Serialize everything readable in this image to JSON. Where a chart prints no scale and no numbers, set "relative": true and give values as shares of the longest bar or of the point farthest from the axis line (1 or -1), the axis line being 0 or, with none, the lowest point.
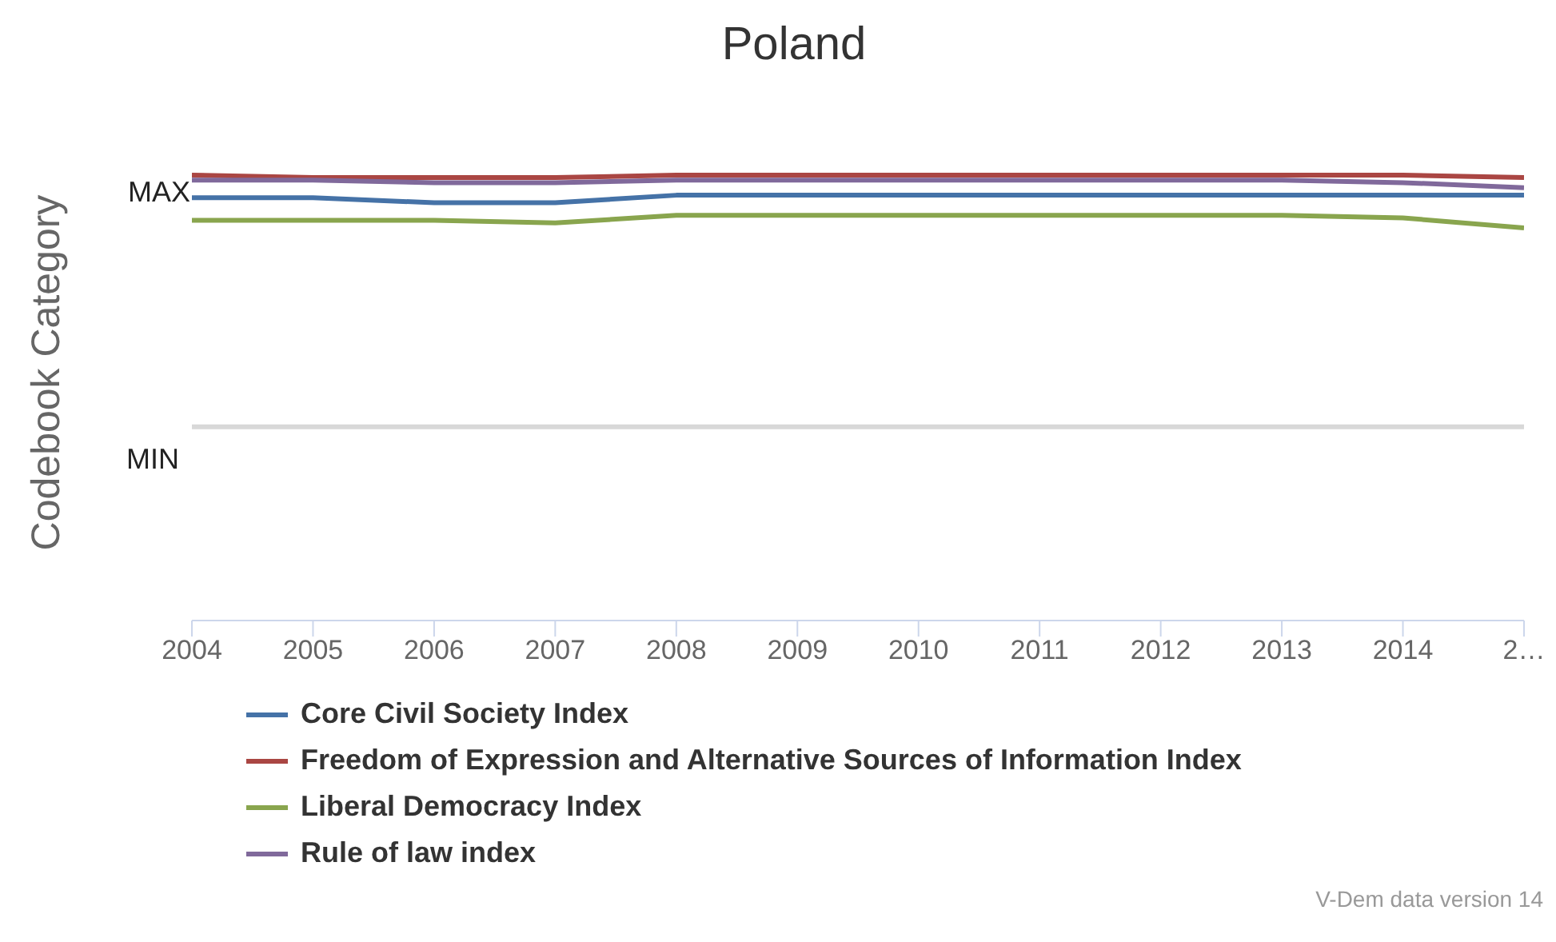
{
  "chart_data": {
    "type": "line",
    "title": "Poland",
    "ylabel": "Codebook Category",
    "relative": true,
    "x": [
      2004,
      2005,
      2006,
      2007,
      2008,
      2009,
      2010,
      2011,
      2012,
      2013,
      2014,
      2015
    ],
    "xlim": [
      2004,
      2015
    ],
    "xticks": [
      2004,
      2005,
      2006,
      2007,
      2008,
      2009,
      2010,
      2011,
      2012,
      2013,
      2014,
      {
        "value": 2015,
        "label": "2…"
      }
    ],
    "legend": "bottom",
    "marker": "none",
    "line_style": "solid",
    "ref_lines": [
      {
        "axis": "y",
        "value": 0,
        "color": "#d8d8d8",
        "label": "MIN"
      }
    ],
    "series": [
      {
        "name": "Core Civil Society Index",
        "color": "#4572a7",
        "values": [
          0.91,
          0.91,
          0.89,
          0.89,
          0.92,
          0.92,
          0.92,
          0.92,
          0.92,
          0.92,
          0.92,
          0.92
        ]
      },
      {
        "name": "Freedom of Expression and Alternative Sources of Information Index",
        "color": "#aa4643",
        "values": [
          1,
          0.99,
          0.99,
          0.99,
          1,
          1,
          1,
          1,
          1,
          1,
          1,
          0.99
        ]
      },
      {
        "name": "Liberal Democracy Index",
        "color": "#89a54e",
        "values": [
          0.82,
          0.82,
          0.82,
          0.81,
          0.84,
          0.84,
          0.84,
          0.84,
          0.84,
          0.84,
          0.83,
          0.79
        ]
      },
      {
        "name": "Rule of law index",
        "color": "#80699b",
        "values": [
          0.98,
          0.98,
          0.97,
          0.97,
          0.98,
          0.98,
          0.98,
          0.98,
          0.98,
          0.98,
          0.97,
          0.95
        ]
      }
    ],
    "annotations": [
      "MAX",
      "V-Dem data version 14"
    ]
  }
}
